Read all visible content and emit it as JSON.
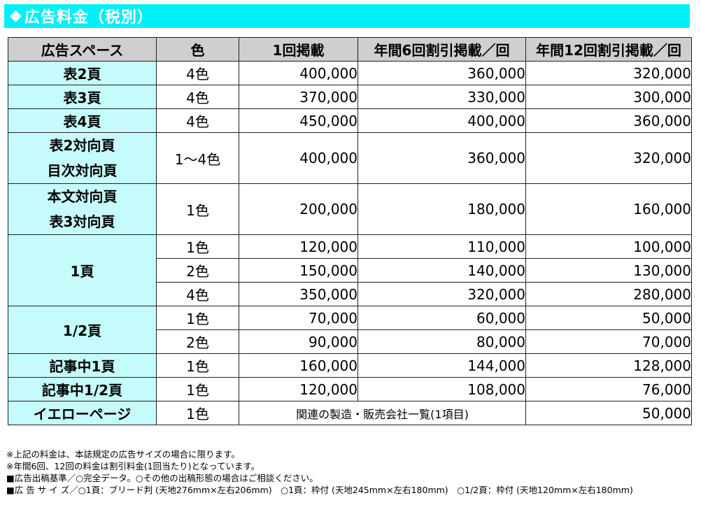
{
  "title": "広告料金（税別）",
  "title_icon": "diamond-icon",
  "header": {
    "space": "広告スペース",
    "color": "色",
    "once": "1回掲載",
    "six": "年間6回割引掲載／回",
    "twelve": "年間12回割引掲載／回"
  },
  "rows": {
    "hyo2": {
      "space": "表2頁",
      "color": "4色",
      "once": "400,000",
      "six": "360,000",
      "twelve": "320,000"
    },
    "hyo3": {
      "space": "表3頁",
      "color": "4色",
      "once": "370,000",
      "six": "330,000",
      "twelve": "300,000"
    },
    "hyo4": {
      "space": "表4頁",
      "color": "4色",
      "once": "450,000",
      "six": "400,000",
      "twelve": "360,000"
    },
    "hyo2_taikou": {
      "space1": "表2対向頁",
      "space2": "目次対向頁",
      "color": "1～4色",
      "once": "400,000",
      "six": "360,000",
      "twelve": "320,000"
    },
    "honbun_taikou": {
      "space1": "本文対向頁",
      "space2": "表3対向頁",
      "color": "1色",
      "once": "200,000",
      "six": "180,000",
      "twelve": "160,000"
    },
    "page1": {
      "space": "1頁",
      "items": [
        {
          "color": "1色",
          "once": "120,000",
          "six": "110,000",
          "twelve": "100,000"
        },
        {
          "color": "2色",
          "once": "150,000",
          "six": "140,000",
          "twelve": "130,000"
        },
        {
          "color": "4色",
          "once": "350,000",
          "six": "320,000",
          "twelve": "280,000"
        }
      ]
    },
    "half": {
      "space": "1/2頁",
      "items": [
        {
          "color": "1色",
          "once": "70,000",
          "six": "60,000",
          "twelve": "50,000"
        },
        {
          "color": "2色",
          "once": "90,000",
          "six": "80,000",
          "twelve": "70,000"
        }
      ]
    },
    "kiji1": {
      "space": "記事中1頁",
      "color": "1色",
      "once": "160,000",
      "six": "144,000",
      "twelve": "128,000"
    },
    "kiji_half": {
      "space": "記事中1/2頁",
      "color": "1色",
      "once": "120,000",
      "six": "108,000",
      "twelve": "76,000"
    },
    "yellow": {
      "space": "イエローページ",
      "color": "1色",
      "note": "関連の製造・販売会社一覧(1項目)",
      "twelve": "50,000"
    }
  },
  "footnotes": [
    "※上記の料金は、本誌規定の広告サイズの場合に限ります。",
    "※年間6回、12回の料金は割引料金(1回当たり)となっています。",
    "■広告出稿基準／○完全データ。○その他の出稿形態の場合はご相談ください。",
    "■広 告 サ イ ズ／○1頁：ブリード判 (天地276mm×左右206mm)　○1頁：枠付 (天地245mm×左右180mm)　○1/2頁：枠付 (天地120mm×左右180mm)"
  ],
  "colors": {
    "title_bar": "#00f0f8",
    "space_cell": "#c6fbfb",
    "header_bg": "#cfcfcf"
  }
}
